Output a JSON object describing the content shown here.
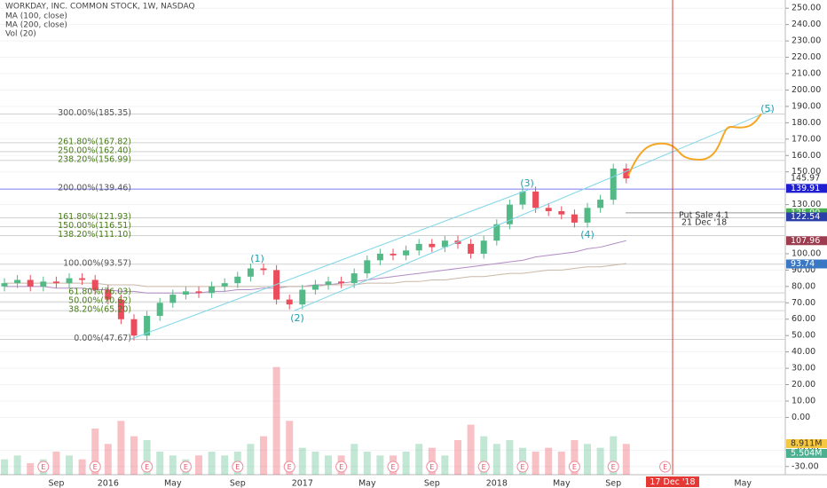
{
  "chart_data": {
    "type": "candlestick",
    "title": "WORKDAY, INC. COMMON STOCK, 1W, NASDAQ",
    "indicators": [
      "MA (100, close)",
      "MA (200, close)",
      "Vol (20)"
    ],
    "categories": [
      null,
      null,
      null,
      null,
      "Sep",
      null,
      null,
      null,
      "2016",
      null,
      null,
      null,
      null,
      "May",
      null,
      null,
      null,
      null,
      "Sep",
      null,
      null,
      null,
      null,
      "2017",
      null,
      null,
      null,
      null,
      "May",
      null,
      null,
      null,
      null,
      "Sep",
      null,
      null,
      null,
      null,
      "2018",
      null,
      null,
      null,
      null,
      "May",
      null,
      null,
      null,
      "Sep",
      null
    ],
    "future_labels": [
      "17 Dec '18",
      "May"
    ],
    "open": [
      80,
      82,
      84,
      80,
      83,
      82,
      85,
      84,
      78,
      72,
      60,
      50,
      62,
      70,
      75,
      77,
      76,
      80,
      82,
      86,
      91,
      90,
      72,
      69,
      78,
      81,
      83,
      82,
      88,
      96,
      100,
      99,
      102,
      106,
      104,
      108,
      106,
      100,
      108,
      118,
      130,
      138,
      128,
      126,
      124,
      119,
      128,
      133,
      152
    ],
    "high": [
      85,
      87,
      87,
      86,
      86,
      88,
      88,
      87,
      81,
      75,
      63,
      65,
      73,
      78,
      80,
      80,
      83,
      85,
      89,
      94,
      94,
      93,
      75,
      81,
      84,
      86,
      86,
      91,
      99,
      103,
      103,
      105,
      109,
      109,
      111,
      111,
      109,
      111,
      121,
      133,
      141,
      141,
      131,
      129,
      127,
      131,
      136,
      155,
      155
    ],
    "low": [
      77,
      79,
      77,
      77,
      79,
      79,
      81,
      75,
      69,
      57,
      47,
      47,
      59,
      67,
      72,
      73,
      73,
      77,
      79,
      83,
      87,
      69,
      66,
      66,
      75,
      78,
      79,
      79,
      85,
      93,
      96,
      96,
      99,
      101,
      101,
      103,
      97,
      97,
      105,
      115,
      127,
      125,
      123,
      121,
      116,
      116,
      125,
      130,
      143
    ],
    "close": [
      82,
      84,
      80,
      83,
      82,
      85,
      84,
      78,
      72,
      60,
      50,
      62,
      70,
      75,
      77,
      76,
      80,
      82,
      86,
      91,
      90,
      72,
      69,
      78,
      81,
      83,
      82,
      88,
      96,
      100,
      99,
      102,
      106,
      104,
      108,
      106,
      100,
      108,
      118,
      130,
      138,
      128,
      126,
      124,
      119,
      128,
      133,
      152,
      146
    ],
    "up_color": "#53b987",
    "down_color": "#eb4d5c",
    "ma100": {
      "name": "MA (100, close)",
      "color": "#b38bc4",
      "values": [
        80,
        80,
        80,
        80,
        79,
        79,
        79,
        78,
        78,
        77,
        77,
        76,
        76,
        76,
        76,
        76,
        77,
        77,
        78,
        78,
        79,
        79,
        80,
        80,
        81,
        81,
        82,
        83,
        84,
        85,
        86,
        87,
        88,
        89,
        90,
        91,
        92,
        93,
        94,
        95,
        96,
        98,
        99,
        100,
        101,
        103,
        104,
        106,
        108
      ]
    },
    "ma200": {
      "name": "MA (200, close)",
      "color": "#c9b8a6",
      "values": [
        82,
        82,
        82,
        82,
        82,
        82,
        82,
        82,
        81,
        81,
        81,
        80,
        80,
        80,
        80,
        80,
        80,
        80,
        80,
        80,
        80,
        80,
        80,
        80,
        80,
        81,
        81,
        81,
        82,
        82,
        82,
        83,
        83,
        84,
        84,
        85,
        86,
        86,
        87,
        88,
        88,
        89,
        90,
        90,
        91,
        92,
        92,
        93,
        94
      ]
    },
    "volume": [
      4,
      5,
      3,
      4,
      6,
      5,
      4,
      12,
      8,
      14,
      10,
      9,
      6,
      5,
      4,
      5,
      6,
      5,
      6,
      8,
      10,
      28,
      14,
      7,
      6,
      5,
      5,
      8,
      6,
      5,
      5,
      6,
      8,
      7,
      5,
      9,
      13,
      10,
      8,
      9,
      7,
      6,
      7,
      6,
      9,
      8,
      7,
      10,
      8
    ],
    "volume_tags": [
      {
        "label": "8.911M",
        "color": "#f5c842"
      },
      {
        "label": "5.504M",
        "color": "#4caf8f"
      }
    ],
    "ylim": [
      -35,
      255
    ],
    "yticks": [
      {
        "value": 250,
        "label": "250.00"
      },
      {
        "value": 240,
        "label": "240.00"
      },
      {
        "value": 230,
        "label": "230.00"
      },
      {
        "value": 220,
        "label": "220.00"
      },
      {
        "value": 210,
        "label": "210.00"
      },
      {
        "value": 200,
        "label": "200.00"
      },
      {
        "value": 190,
        "label": "190.00"
      },
      {
        "value": 180,
        "label": "180.00"
      },
      {
        "value": 170,
        "label": "170.00"
      },
      {
        "value": 160,
        "label": "160.00"
      },
      {
        "value": 150,
        "label": "150.00"
      },
      {
        "value": 130,
        "label": "130.00"
      },
      {
        "value": 100,
        "label": "100.00"
      },
      {
        "value": 90,
        "label": "90.00"
      },
      {
        "value": 80,
        "label": "80.00"
      },
      {
        "value": 70,
        "label": "70.00"
      },
      {
        "value": 60,
        "label": "60.00"
      },
      {
        "value": 50,
        "label": "50.00"
      },
      {
        "value": 40,
        "label": "40.00"
      },
      {
        "value": 30,
        "label": "30.00"
      },
      {
        "value": 20,
        "label": "20.00"
      },
      {
        "value": 10,
        "label": "10.00"
      },
      {
        "value": 0,
        "label": "0.00"
      },
      {
        "value": -20,
        "label": "-20.00"
      },
      {
        "value": -30,
        "label": "-30.00"
      }
    ],
    "grid": true,
    "fib_levels": [
      {
        "value": 185.35,
        "label": "300.00%(185.35)",
        "color": "#555555"
      },
      {
        "value": 167.82,
        "label": "261.80%(167.82)",
        "color": "#4a7d1a"
      },
      {
        "value": 162.4,
        "label": "250.00%(162.40)",
        "color": "#4a7d1a"
      },
      {
        "value": 156.99,
        "label": "238.20%(156.99)",
        "color": "#4a7d1a"
      },
      {
        "value": 139.46,
        "label": "200.00%(139.46)",
        "color": "#555555"
      },
      {
        "value": 121.93,
        "label": "161.80%(121.93)",
        "color": "#4a7d1a"
      },
      {
        "value": 116.51,
        "label": "150.00%(116.51)",
        "color": "#4a7d1a"
      },
      {
        "value": 111.1,
        "label": "138.20%(111.10)",
        "color": "#4a7d1a"
      },
      {
        "value": 93.57,
        "label": "100.00%(93.57)",
        "color": "#555555"
      },
      {
        "value": 76.03,
        "label": "61.80%(76.03)",
        "color": "#4a7d1a"
      },
      {
        "value": 70.62,
        "label": "50.00%(70.62)",
        "color": "#4a7d1a"
      },
      {
        "value": 65.2,
        "label": "38.20%(65.20)",
        "color": "#4a7d1a"
      },
      {
        "value": 47.67,
        "label": "0.00%(47.67)",
        "color": "#555555"
      }
    ],
    "waves": [
      "(1)",
      "(2)",
      "(3)",
      "(4)",
      "(5)"
    ],
    "put_sale": {
      "value": 125,
      "label": "125.00",
      "lines": [
        "Put Sale 4.1",
        "21 Dec '18"
      ]
    },
    "price_tags": [
      {
        "value": 145.97,
        "color": "#ffffff"
      },
      {
        "value": 139.91,
        "color": "#1f1fd1"
      },
      {
        "value": 122.54,
        "color": "#2b3fa8"
      },
      {
        "value": 107.96,
        "color": "#9c3c4e"
      },
      {
        "value": 93.74,
        "color": "#3a78c4"
      }
    ],
    "earnings_marker": "E"
  }
}
